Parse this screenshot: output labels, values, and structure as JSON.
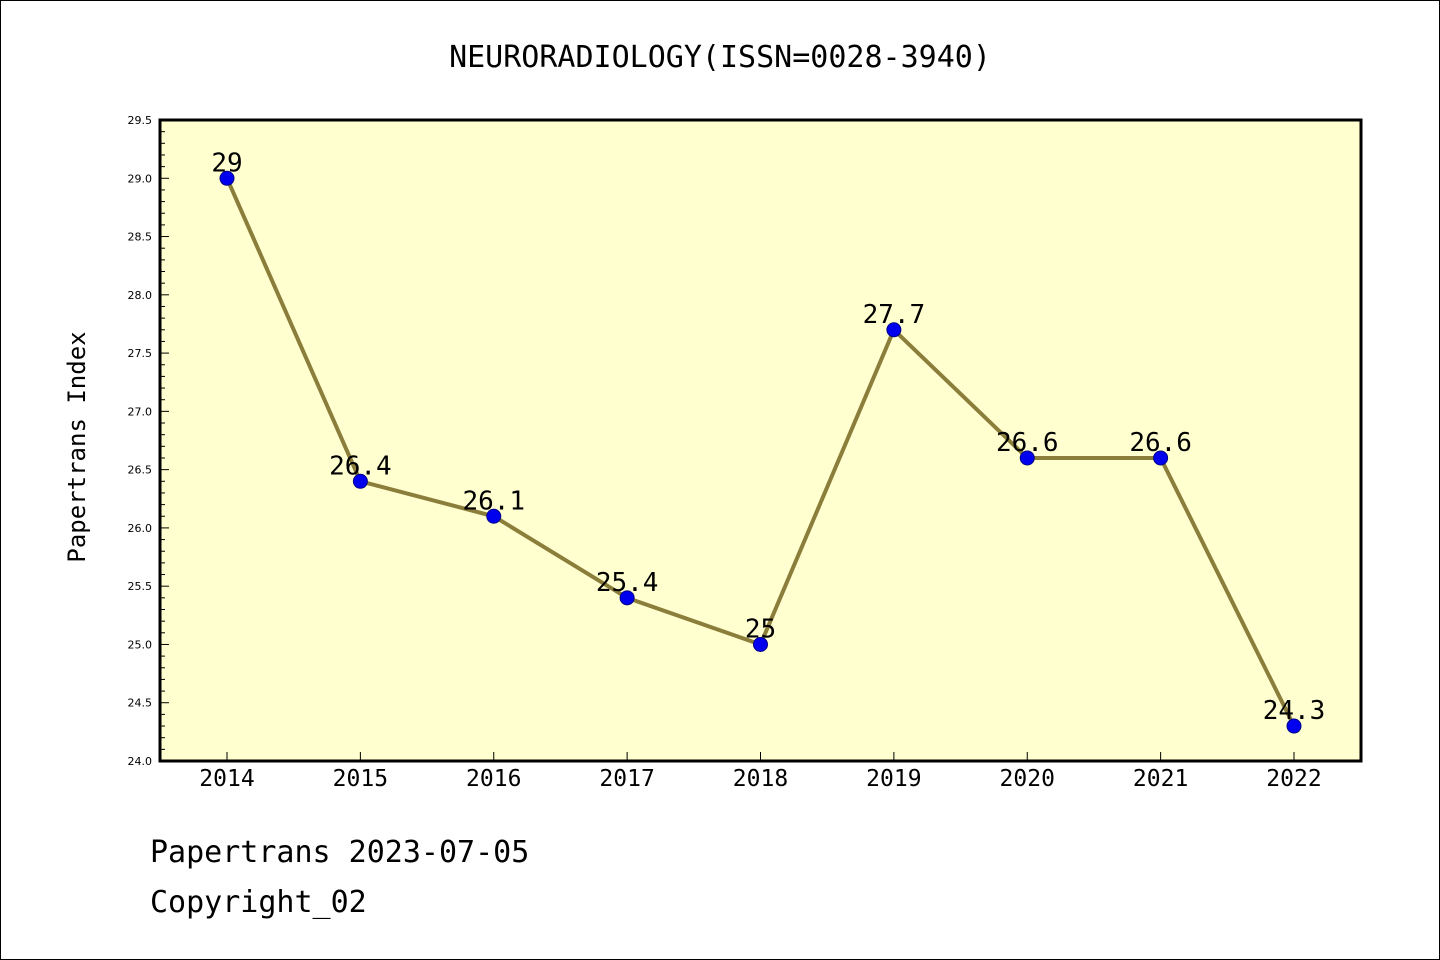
{
  "chart_data": {
    "type": "line",
    "title": "NEURORADIOLOGY(ISSN=0028-3940)",
    "xlabel": "",
    "ylabel": "Papertrans Index",
    "categories": [
      "2014",
      "2015",
      "2016",
      "2017",
      "2018",
      "2019",
      "2020",
      "2021",
      "2022"
    ],
    "series": [
      {
        "values": [
          29,
          26.4,
          26.1,
          25.4,
          25,
          27.7,
          26.6,
          26.6,
          24.3
        ],
        "labels": [
          "29",
          "26.4",
          "26.1",
          "25.4",
          "25",
          "27.7",
          "26.6",
          "26.6",
          "24.3"
        ]
      }
    ],
    "ylim": [
      24.0,
      29.5
    ],
    "yticks": [
      "24.0",
      "24.5",
      "25.0",
      "25.5",
      "26.0",
      "26.5",
      "27.0",
      "27.5",
      "28.0",
      "28.5",
      "29.0",
      "29.5"
    ],
    "grid": false,
    "colors": {
      "plot_bg": "#ffffd0",
      "line": "#8b7d3a",
      "marker": "#0000ee"
    }
  },
  "footer": {
    "line1": "Papertrans 2023-07-05",
    "line2": "Copyright_02"
  }
}
